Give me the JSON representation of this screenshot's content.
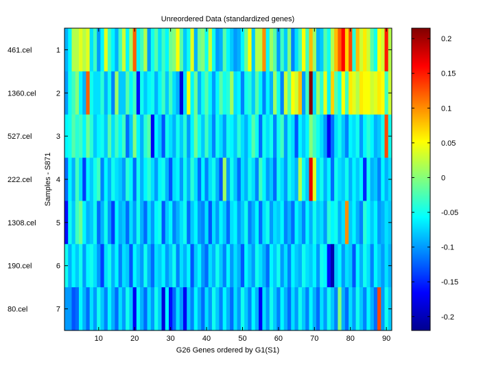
{
  "chart_data": {
    "type": "heatmap",
    "title": "Unreordered Data (standardized genes)",
    "xlabel": "G26 Genes ordered by G1(S1)",
    "ylabel": "Samples - S871",
    "colormap": "jet",
    "n_genes": 91,
    "x_range": [
      0.5,
      91.5
    ],
    "x_ticks": [
      10,
      20,
      30,
      40,
      50,
      60,
      70,
      80,
      90
    ],
    "y_ticks": [
      1,
      2,
      3,
      4,
      5,
      6,
      7
    ],
    "sample_labels": [
      "461.cel",
      "1360.cel",
      "527.cel",
      "222.cel",
      "1308.cel",
      "190.cel",
      "80.cel"
    ],
    "colorbar": {
      "range": [
        -0.22,
        0.215
      ],
      "ticks": [
        -0.2,
        -0.15,
        -0.1,
        -0.05,
        0,
        0.05,
        0.1,
        0.15,
        0.2
      ]
    },
    "rows": [
      {
        "sample": "461.cel",
        "values": [
          -0.09,
          -0.06,
          0.02,
          0.02,
          0.04,
          0.02,
          0.04,
          -0.07,
          -0.03,
          -0.1,
          -0.06,
          0.04,
          -0.03,
          -0.06,
          -0.09,
          -0.03,
          0.03,
          -0.06,
          0.01,
          0.12,
          -0.06,
          -0.03,
          0.02,
          -0.1,
          -0.05,
          -0.02,
          -0.07,
          -0.03,
          -0.06,
          -0.01,
          0,
          0.05,
          -0.02,
          -0.08,
          -0.05,
          0.04,
          -0.09,
          -0.01,
          0,
          -0.05,
          0.03,
          -0.05,
          -0.1,
          -0.09,
          -0.02,
          -0.06,
          -0.08,
          -0.1,
          -0.09,
          -0.06,
          -0.01,
          0.05,
          -0.08,
          0.02,
          0.02,
          0.1,
          -0.06,
          0.01,
          -0.02,
          -0.1,
          -0.03,
          -0.08,
          0,
          -0.11,
          -0.07,
          -0.03,
          0.05,
          -0.03,
          0.08,
          0.01,
          -0.09,
          -0.08,
          -0.02,
          -0.05,
          0.02,
          0.08,
          0.12,
          0.16,
          0.07,
          0.13,
          -0.04,
          0.08,
          0.03,
          0.06,
          0.03,
          -0.02,
          -0.05,
          0.05,
          0.03,
          0.15,
          0.02
        ]
      },
      {
        "sample": "1360.cel",
        "values": [
          -0.1,
          -0.05,
          -0.03,
          0,
          -0.06,
          -0.09,
          0.12,
          -0.05,
          -0.07,
          -0.07,
          -0.04,
          -0.09,
          -0.05,
          -0.11,
          0.01,
          -0.08,
          -0.08,
          -0.02,
          -0.06,
          -0.03,
          -0.16,
          -0.05,
          -0.08,
          -0.06,
          -0.05,
          -0.09,
          -0.06,
          -0.03,
          -0.08,
          -0.03,
          -0.07,
          -0.09,
          -0.18,
          -0.07,
          0.05,
          -0.06,
          -0.01,
          -0.09,
          -0.05,
          -0.02,
          -0.06,
          -0.1,
          -0.06,
          -0.02,
          -0.05,
          -0.04,
          0.01,
          -0.07,
          -0.06,
          -0.11,
          -0.05,
          -0.04,
          -0.08,
          -0.02,
          -0.06,
          -0.11,
          -0.06,
          -0.09,
          0.01,
          -0.05,
          -0.11,
          0.03,
          -0.02,
          0.05,
          0.03,
          0.08,
          -0.1,
          -0.03,
          0.21,
          -0.07,
          0.01,
          -0.04,
          0.04,
          -0.06,
          0.07,
          -0.02,
          -0.05,
          0.05,
          -0.03,
          0.06,
          0.04,
          0.02,
          0.06,
          0.05,
          0.05,
          0.03,
          0.04,
          0.06,
          0.05,
          -0.03,
          0.03
        ]
      },
      {
        "sample": "527.cel",
        "values": [
          -0.06,
          -0.05,
          -0.02,
          -0.04,
          -0.03,
          -0.06,
          -0.01,
          -0.04,
          -0.08,
          -0.06,
          -0.05,
          -0.08,
          -0.02,
          -0.07,
          -0.03,
          -0.06,
          -0.03,
          -0.12,
          -0.08,
          0,
          -0.06,
          -0.09,
          -0.04,
          -0.02,
          -0.17,
          -0.06,
          -0.08,
          -0.13,
          -0.05,
          -0.07,
          -0.09,
          -0.05,
          -0.08,
          -0.04,
          -0.1,
          -0.06,
          -0.01,
          -0.05,
          -0.08,
          -0.03,
          -0.07,
          -0.11,
          -0.05,
          -0.07,
          -0.1,
          -0.05,
          -0.06,
          -0.08,
          -0.04,
          -0.07,
          -0.09,
          -0.06,
          -0.02,
          -0.05,
          -0.12,
          -0.05,
          -0.07,
          -0.05,
          -0.11,
          -0.05,
          -0.03,
          -0.1,
          -0.05,
          -0.07,
          -0.13,
          -0.06,
          -0.08,
          -0.06,
          0,
          -0.03,
          -0.05,
          -0.07,
          -0.1,
          -0.17,
          -0.12,
          -0.07,
          -0.05,
          -0.08,
          -0.11,
          -0.06,
          -0.07,
          -0.05,
          -0.1,
          -0.06,
          -0.04,
          -0.06,
          -0.09,
          -0.08,
          -0.05,
          0.13,
          -0.05
        ]
      },
      {
        "sample": "222.cel",
        "values": [
          -0.12,
          -0.06,
          -0.09,
          -0.03,
          -0.07,
          -0.14,
          -0.06,
          -0.08,
          -0.05,
          -0.03,
          -0.11,
          -0.06,
          -0.09,
          -0.05,
          -0.07,
          -0.08,
          -0.1,
          -0.04,
          -0.06,
          -0.12,
          -0.05,
          -0.09,
          -0.06,
          -0.04,
          -0.07,
          -0.1,
          -0.06,
          -0.05,
          -0.09,
          -0.13,
          -0.07,
          -0.06,
          -0.1,
          -0.05,
          -0.09,
          -0.04,
          -0.07,
          -0.12,
          -0.06,
          -0.11,
          -0.07,
          -0.05,
          -0.09,
          -0.13,
          0.01,
          -0.1,
          -0.05,
          -0.08,
          -0.12,
          -0.07,
          -0.09,
          -0.05,
          -0.07,
          -0.11,
          -0.03,
          -0.06,
          -0.1,
          -0.08,
          -0.12,
          -0.05,
          -0.07,
          -0.1,
          -0.05,
          -0.07,
          -0.09,
          0.02,
          -0.05,
          -0.08,
          0.17,
          0.04,
          -0.07,
          -0.05,
          -0.09,
          -0.06,
          -0.12,
          -0.05,
          -0.07,
          -0.08,
          -0.05,
          -0.09,
          -0.06,
          -0.08,
          -0.06,
          -0.15,
          -0.05,
          -0.09,
          -0.08,
          -0.11,
          -0.06,
          -0.09,
          -0.07
        ]
      },
      {
        "sample": "1308.cel",
        "values": [
          -0.16,
          -0.05,
          -0.08,
          -0.03,
          -0.01,
          -0.06,
          -0.09,
          -0.08,
          -0.05,
          -0.12,
          -0.09,
          -0.05,
          -0.1,
          -0.14,
          -0.06,
          -0.09,
          -0.08,
          -0.12,
          -0.07,
          -0.1,
          -0.05,
          -0.09,
          -0.12,
          -0.07,
          -0.1,
          -0.06,
          -0.05,
          -0.13,
          -0.08,
          -0.06,
          -0.11,
          -0.09,
          -0.07,
          -0.05,
          -0.12,
          -0.08,
          -0.06,
          -0.1,
          -0.11,
          -0.07,
          -0.13,
          -0.07,
          -0.1,
          -0.06,
          -0.08,
          -0.12,
          -0.07,
          -0.06,
          -0.1,
          -0.08,
          -0.05,
          -0.11,
          -0.09,
          -0.06,
          -0.12,
          -0.07,
          -0.05,
          -0.1,
          -0.07,
          -0.08,
          -0.06,
          -0.11,
          -0.09,
          -0.12,
          -0.06,
          -0.08,
          -0.11,
          -0.06,
          -0.09,
          -0.05,
          -0.08,
          -0.07,
          -0.1,
          -0.04,
          -0.06,
          -0.05,
          -0.09,
          -0.07,
          0.1,
          -0.08,
          -0.06,
          -0.09,
          -0.11,
          -0.04,
          -0.06,
          -0.08,
          -0.06,
          -0.1,
          -0.09,
          -0.07,
          -0.08
        ]
      },
      {
        "sample": "190.cel",
        "values": [
          -0.05,
          -0.09,
          -0.06,
          -0.08,
          -0.05,
          -0.1,
          -0.06,
          -0.05,
          -0.07,
          -0.1,
          -0.14,
          -0.07,
          -0.05,
          -0.09,
          -0.06,
          -0.11,
          -0.07,
          -0.08,
          -0.13,
          -0.06,
          -0.08,
          -0.1,
          -0.05,
          -0.09,
          -0.12,
          -0.07,
          -0.08,
          -0.06,
          -0.1,
          -0.08,
          -0.05,
          -0.11,
          -0.07,
          -0.09,
          -0.06,
          -0.13,
          -0.08,
          -0.06,
          -0.1,
          -0.12,
          -0.07,
          -0.09,
          -0.05,
          -0.08,
          -0.11,
          -0.06,
          -0.1,
          -0.07,
          -0.09,
          -0.13,
          -0.06,
          -0.08,
          -0.1,
          -0.05,
          -0.07,
          -0.09,
          -0.12,
          -0.06,
          -0.08,
          -0.05,
          -0.1,
          -0.07,
          -0.11,
          -0.06,
          -0.08,
          -0.09,
          -0.05,
          -0.07,
          -0.08,
          -0.06,
          -0.1,
          -0.05,
          -0.06,
          -0.16,
          -0.2,
          -0.08,
          -0.06,
          -0.1,
          -0.07,
          -0.08,
          -0.13,
          -0.06,
          -0.09,
          -0.05,
          -0.07,
          -0.11,
          -0.06,
          -0.08,
          -0.1,
          -0.07,
          -0.09
        ]
      },
      {
        "sample": "80.cel",
        "values": [
          -0.1,
          -0.1,
          -0.13,
          -0.12,
          -0.06,
          -0.09,
          -0.12,
          -0.07,
          -0.1,
          -0.05,
          -0.08,
          -0.11,
          -0.06,
          -0.09,
          -0.12,
          -0.07,
          -0.1,
          -0.05,
          -0.08,
          -0.17,
          -0.06,
          -0.09,
          -0.12,
          -0.07,
          -0.1,
          -0.05,
          -0.08,
          -0.18,
          -0.06,
          -0.16,
          -0.12,
          -0.07,
          -0.1,
          -0.17,
          -0.08,
          -0.11,
          -0.06,
          -0.09,
          -0.12,
          -0.07,
          -0.1,
          -0.05,
          -0.08,
          -0.11,
          -0.06,
          -0.09,
          -0.12,
          -0.07,
          -0.1,
          -0.05,
          -0.08,
          -0.11,
          -0.06,
          -0.09,
          -0.17,
          -0.07,
          -0.1,
          -0.05,
          -0.08,
          -0.11,
          -0.06,
          -0.09,
          -0.12,
          -0.07,
          -0.1,
          -0.05,
          -0.08,
          -0.11,
          -0.06,
          -0.09,
          -0.12,
          -0.07,
          -0.1,
          -0.05,
          -0.08,
          -0.11,
          0,
          -0.09,
          -0.12,
          -0.07,
          -0.1,
          -0.05,
          -0.08,
          -0.11,
          -0.06,
          -0.09,
          -0.12,
          0.13,
          -0.1,
          -0.05,
          -0.08
        ]
      }
    ]
  }
}
